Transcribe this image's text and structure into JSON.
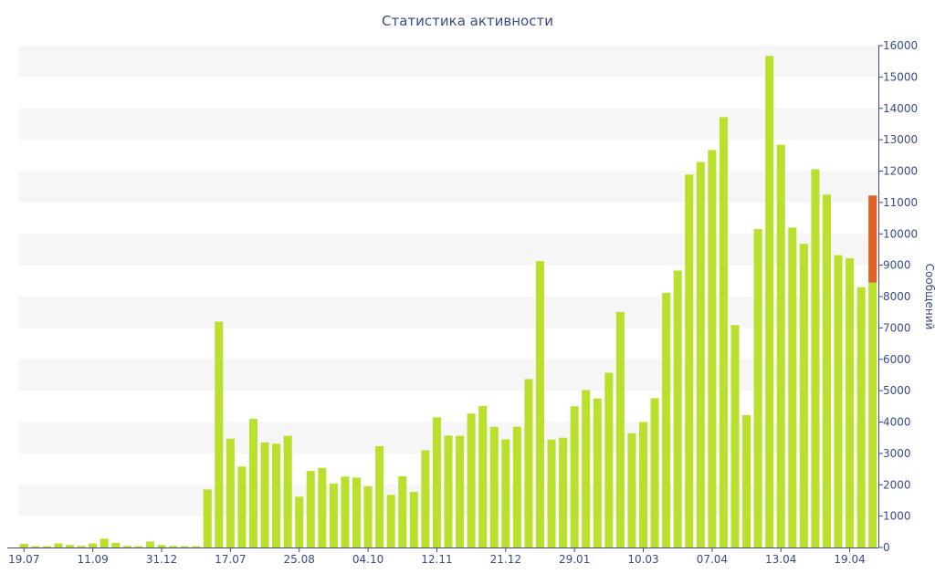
{
  "colors": {
    "bar": "#b8e02c",
    "highlight": "#e25f2a",
    "band": "#f6f6f6",
    "text": "#3a4a8a",
    "axis": "#3a4a8a"
  },
  "chart_data": {
    "type": "bar",
    "title": "Статистика активности",
    "xlabel": "",
    "ylabel": "Сообщений",
    "ylim": [
      0,
      16000
    ],
    "y_ticks": [
      0,
      1000,
      2000,
      3000,
      4000,
      5000,
      6000,
      7000,
      8000,
      9000,
      10000,
      11000,
      12000,
      13000,
      14000,
      15000,
      16000
    ],
    "x_tick_labels": [
      {
        "label": "19.07",
        "index": 0
      },
      {
        "label": "11.09",
        "index": 6
      },
      {
        "label": "31.12",
        "index": 12
      },
      {
        "label": "17.07",
        "index": 18
      },
      {
        "label": "25.08",
        "index": 24
      },
      {
        "label": "04.10",
        "index": 30
      },
      {
        "label": "12.11",
        "index": 36
      },
      {
        "label": "21.12",
        "index": 42
      },
      {
        "label": "29.01",
        "index": 48
      },
      {
        "label": "10.03",
        "index": 54
      },
      {
        "label": "07.04",
        "index": 60
      },
      {
        "label": "13.04",
        "index": 66
      },
      {
        "label": "19.04",
        "index": 72
      }
    ],
    "grid": "alternating horizontal bands",
    "axis_position": "right",
    "series": [
      {
        "values": [
          120,
          40,
          40,
          130,
          80,
          50,
          130,
          280,
          150,
          50,
          40,
          190,
          80,
          50,
          40,
          40,
          1850,
          7200,
          3470,
          2580,
          4100,
          3350,
          3310,
          3560,
          1620,
          2440,
          2540,
          2040,
          2260,
          2230,
          1950,
          3230,
          1680,
          2270,
          1770,
          3100,
          4150,
          3570,
          3560,
          4270,
          4510,
          3850,
          3450,
          3850,
          5370,
          9130,
          3440,
          3500,
          4500,
          5020,
          4750,
          5570,
          7510,
          3640,
          4000,
          4760,
          8120,
          8830,
          11890,
          12290,
          12670,
          13720,
          7090,
          4220,
          10150,
          15670,
          12840,
          10200,
          9680,
          12060,
          11250,
          9320,
          9220,
          8300,
          11220
        ]
      }
    ],
    "highlight": {
      "index": 74,
      "base": 8450,
      "top": 11220
    }
  }
}
